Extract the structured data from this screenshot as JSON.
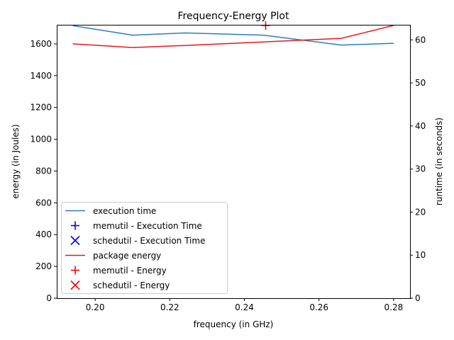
{
  "chart_data": {
    "type": "line",
    "title": "Frequency-Energy Plot",
    "xlabel": "frequency (in GHz)",
    "ylabel_left": "energy (in Joules)",
    "ylabel_right": "runtime (in seconds)",
    "xlim": [
      0.1897,
      0.2844
    ],
    "ylim_left": [
      0,
      1720
    ],
    "ylim_right": [
      0,
      63.5
    ],
    "x_ticks": [
      0.2,
      0.22,
      0.24,
      0.26,
      0.28
    ],
    "x_tick_labels": [
      "0.20",
      "0.22",
      "0.24",
      "0.26",
      "0.28"
    ],
    "y_left_ticks": [
      0,
      200,
      400,
      600,
      800,
      1000,
      1200,
      1400,
      1600
    ],
    "y_left_tick_labels": [
      "0",
      "200",
      "400",
      "600",
      "800",
      "1000",
      "1200",
      "1400",
      "1600"
    ],
    "y_right_ticks": [
      0,
      10,
      20,
      30,
      40,
      50,
      60
    ],
    "y_right_tick_labels": [
      "0",
      "10",
      "20",
      "30",
      "40",
      "50",
      "60"
    ],
    "grid": false,
    "legend_position": "lower-left",
    "series": [
      {
        "name": "execution time",
        "axis": "right",
        "kind": "line",
        "color": "#2f7bbf",
        "x": [
          0.194,
          0.21,
          0.224,
          0.245,
          0.266,
          0.28
        ],
        "y": [
          63.3,
          61.1,
          61.6,
          61.1,
          58.8,
          59.2
        ]
      },
      {
        "name": "memutil - Execution Time",
        "axis": "right",
        "kind": "marker",
        "marker": "plus",
        "color": "#0000ff",
        "x": [],
        "y": []
      },
      {
        "name": "schedutil - Execution Time",
        "axis": "right",
        "kind": "marker",
        "marker": "x",
        "color": "#0000ff",
        "x": [],
        "y": []
      },
      {
        "name": "package energy",
        "axis": "left",
        "kind": "line",
        "color": "#e31a1c",
        "x": [
          0.194,
          0.21,
          0.224,
          0.245,
          0.266,
          0.28
        ],
        "y": [
          1600,
          1577,
          1590,
          1612,
          1635,
          1716
        ]
      },
      {
        "name": "memutil - Energy",
        "axis": "left",
        "kind": "marker",
        "marker": "plus",
        "color": "#ff0000",
        "x": [
          0.2457
        ],
        "y": [
          1716
        ]
      },
      {
        "name": "schedutil - Energy",
        "axis": "left",
        "kind": "marker",
        "marker": "x",
        "color": "#ff0000",
        "x": [],
        "y": []
      }
    ]
  }
}
